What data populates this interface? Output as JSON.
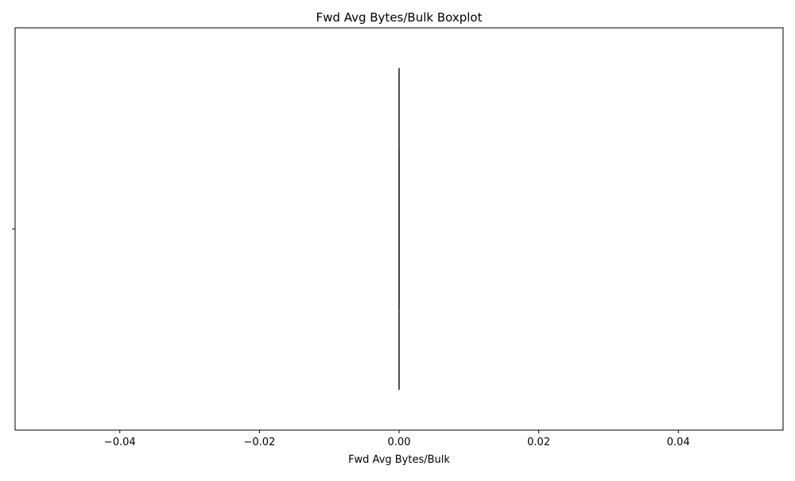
{
  "chart_data": {
    "type": "boxplot",
    "title": "Fwd Avg Bytes/Bulk Boxplot",
    "xlabel": "Fwd Avg Bytes/Bulk",
    "ylabel": "",
    "orientation": "horizontal",
    "xlim": [
      -0.055,
      0.055
    ],
    "x_ticks": [
      -0.04,
      -0.02,
      0.0,
      0.02,
      0.04
    ],
    "x_tick_labels": [
      "−0.04",
      "−0.02",
      "0.00",
      "0.02",
      "0.04"
    ],
    "y_ticks": [
      ""
    ],
    "grid": false,
    "series": [
      {
        "min": 0.0,
        "q1": 0.0,
        "median": 0.0,
        "q3": 0.0,
        "max": 0.0,
        "color": "#3a3a3a"
      }
    ]
  }
}
